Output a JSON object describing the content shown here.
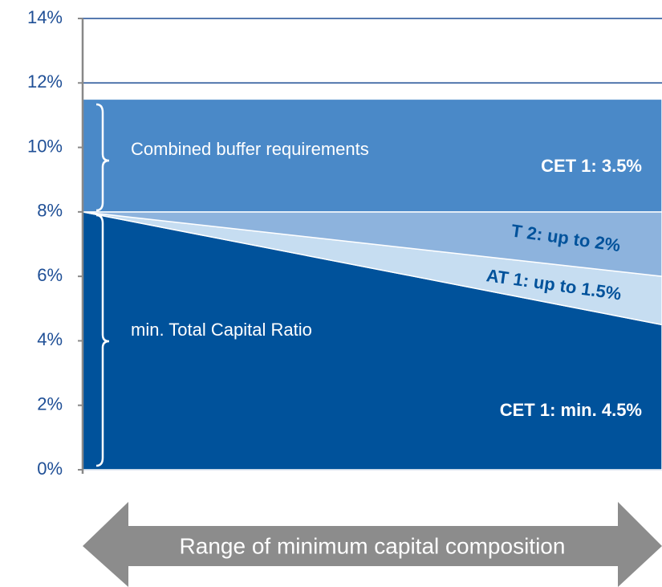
{
  "chart_data": {
    "type": "stacked_area",
    "categories": [
      null,
      null
    ],
    "series": [
      {
        "name": "CET 1: min. 4.5%",
        "color": "#00529b",
        "values": [
          8,
          4.5
        ]
      },
      {
        "name": "AT 1: up to 1.5%",
        "color": "#c6ddf1",
        "values": [
          0,
          1.5
        ]
      },
      {
        "name": "T 2: up to 2%",
        "color": "#8db3dd",
        "values": [
          0,
          2
        ]
      },
      {
        "name": "CET 1: 3.5%",
        "color": "#4a89c8",
        "values": [
          3.5,
          3.5
        ]
      }
    ],
    "ylim": [
      0,
      14
    ],
    "yticks": [
      {
        "value": 0,
        "label": "0%"
      },
      {
        "value": 2,
        "label": "2%"
      },
      {
        "value": 4,
        "label": "4%"
      },
      {
        "value": 6,
        "label": "6%"
      },
      {
        "value": 8,
        "label": "8%"
      },
      {
        "value": 10,
        "label": "10%"
      },
      {
        "value": 12,
        "label": "12%"
      },
      {
        "value": 14,
        "label": "14%"
      }
    ],
    "grid": true,
    "annotations": [
      "Combined buffer requirements",
      "min. Total Capital Ratio",
      "Range of minimum capital composition"
    ]
  }
}
